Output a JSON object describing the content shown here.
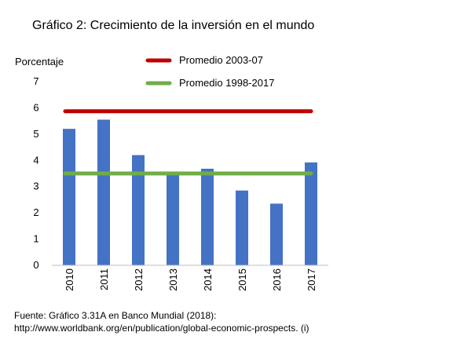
{
  "chart_data": {
    "type": "bar",
    "title": "Gráfico 2: Crecimiento de la inversión en el mundo",
    "ylabel": "Porcentaje",
    "xlabel": "",
    "ylim": [
      0,
      7
    ],
    "yticks": [
      "0",
      "1",
      "2",
      "3",
      "4",
      "5",
      "6",
      "7"
    ],
    "categories": [
      "2010",
      "2011",
      "2012",
      "2013",
      "2014",
      "2015",
      "2016",
      "2017"
    ],
    "values": [
      5.2,
      5.55,
      4.2,
      3.45,
      3.68,
      2.85,
      2.35,
      3.92
    ],
    "bar_color": "#4472c4",
    "reference_lines": [
      {
        "name": "Promedio 2003-07",
        "value": 5.87,
        "color": "#c00000"
      },
      {
        "name": "Promedio 1998-2017",
        "value": 3.5,
        "color": "#70ad47"
      }
    ],
    "grid": false,
    "legend_position": "top-right"
  },
  "source": {
    "line1": "Fuente: Gráfico 3.31A en Banco Mundial (2018):",
    "line2": "http://www.worldbank.org/en/publication/global-economic-prospects. (i)"
  }
}
